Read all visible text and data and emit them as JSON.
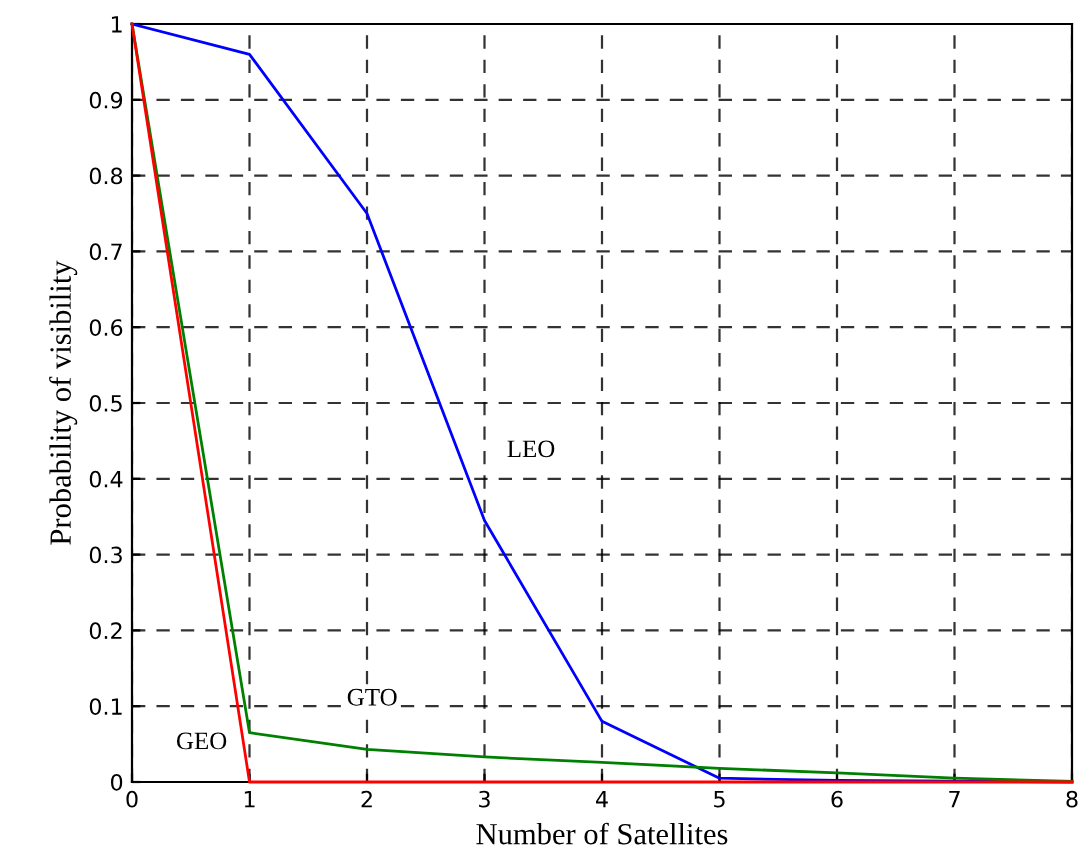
{
  "chart_data": {
    "type": "line",
    "xlabel": "Number of Satellites",
    "ylabel": "Probability of visibility",
    "x": [
      0,
      1,
      2,
      3,
      4,
      5,
      6,
      7,
      8
    ],
    "series": [
      {
        "name": "LEO",
        "color": "#0000ff",
        "values": [
          1,
          0.96,
          0.75,
          0.345,
          0.08,
          0.005,
          0.002,
          0.001,
          0
        ]
      },
      {
        "name": "GTO",
        "color": "#008000",
        "values": [
          1,
          0.065,
          0.043,
          0.033,
          0.026,
          0.018,
          0.012,
          0.005,
          0.001
        ]
      },
      {
        "name": "GEO",
        "color": "#ff0000",
        "values": [
          1,
          0,
          0,
          0,
          0,
          0,
          0,
          0,
          0
        ]
      }
    ],
    "xlim": [
      0,
      8
    ],
    "xticks": [
      0,
      1,
      2,
      3,
      4,
      5,
      6,
      7,
      8
    ],
    "ylim": [
      0,
      1
    ],
    "yticks": [
      0,
      0.1,
      0.2,
      0.3,
      0.4,
      0.5,
      0.6,
      0.7,
      0.8,
      0.9,
      1
    ],
    "grid": true,
    "marker": "none",
    "line_style": "solid"
  }
}
